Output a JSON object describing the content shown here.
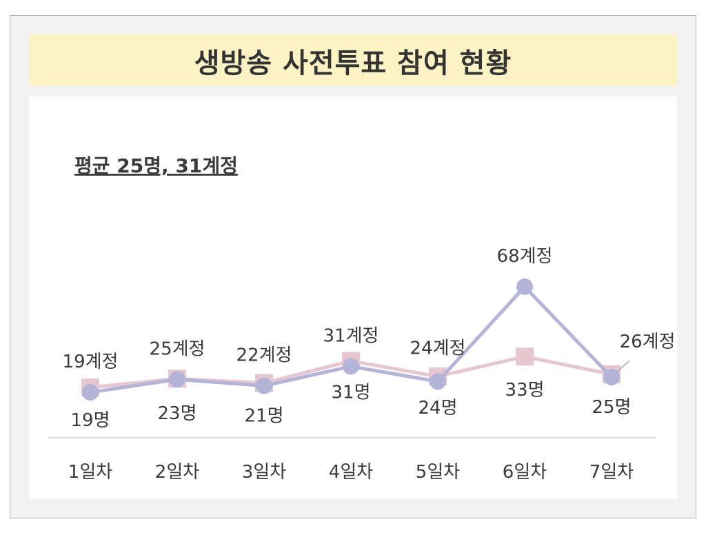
{
  "chart_data": {
    "type": "line",
    "title": "생방송 사전투표 참여 현황",
    "annotation": "평균 25명, 31계정",
    "categories": [
      "1일차",
      "2일차",
      "3일차",
      "4일차",
      "5일차",
      "6일차",
      "7일차"
    ],
    "series": [
      {
        "name": "계정",
        "values": [
          19,
          25,
          22,
          31,
          24,
          68,
          26
        ],
        "labels": [
          "19계정",
          "25계정",
          "22계정",
          "31계정",
          "24계정",
          "68계정",
          "26계정"
        ],
        "color": "#b4b4d8",
        "marker": "circle"
      },
      {
        "name": "명",
        "values": [
          19,
          23,
          21,
          31,
          24,
          33,
          25
        ],
        "labels": [
          "19명",
          "23명",
          "21명",
          "31명",
          "24명",
          "33명",
          "25명"
        ],
        "color": "#e6c6cf",
        "marker": "square"
      }
    ],
    "xlabel": "",
    "ylabel": "",
    "ylim": [
      0,
      75
    ],
    "grid": false,
    "legend": "none"
  }
}
